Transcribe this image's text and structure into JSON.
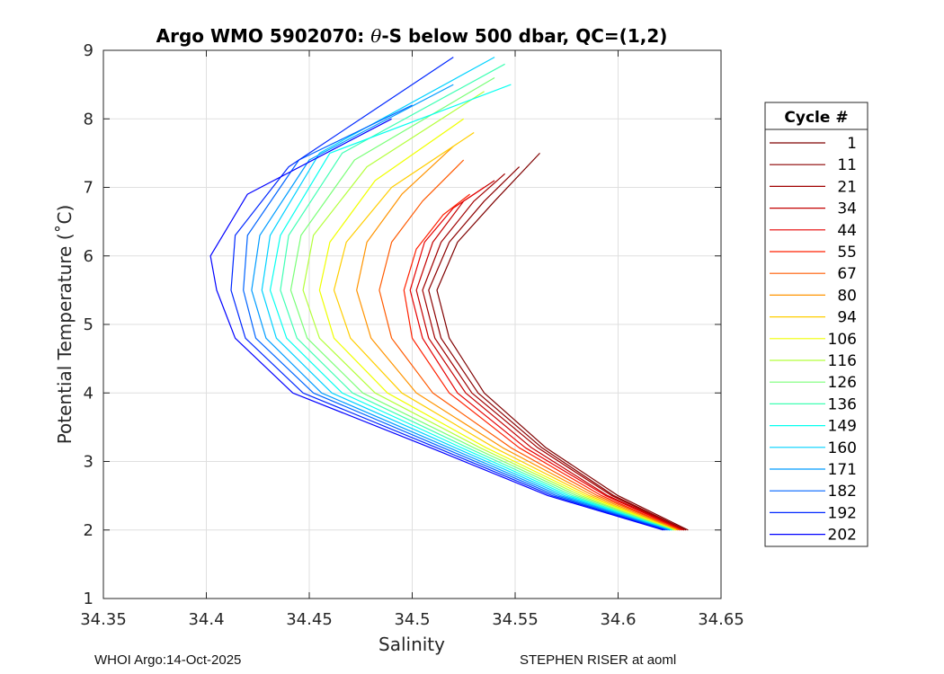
{
  "chart_data": {
    "type": "line",
    "title": "Argo WMO 5902070: θ-S below 500 dbar,  QC=(1,2)",
    "title_prefix": "Argo WMO 5902070: ",
    "title_theta": "θ",
    "title_suffix": "-S below 500 dbar,  QC=(1,2)",
    "xlabel": "Salinity",
    "ylabel": "Potential Temperature (˚C)",
    "xlim": [
      34.35,
      34.65
    ],
    "ylim": [
      1,
      9
    ],
    "x_ticks": [
      34.35,
      34.4,
      34.45,
      34.5,
      34.55,
      34.6,
      34.65
    ],
    "x_tick_labels": [
      "34.35",
      "34.4",
      "34.45",
      "34.5",
      "34.55",
      "34.6",
      "34.65"
    ],
    "y_ticks": [
      1,
      2,
      3,
      4,
      5,
      6,
      7,
      8,
      9
    ],
    "y_tick_labels": [
      "1",
      "2",
      "3",
      "4",
      "5",
      "6",
      "7",
      "8",
      "9"
    ],
    "grid": true,
    "legend_title": "Cycle #",
    "legend_position": "right, outside plot",
    "colormap": "jet",
    "series": [
      {
        "name": "1",
        "color": "#7f0000",
        "points": [
          [
            34.634,
            2.0
          ],
          [
            34.6,
            2.5
          ],
          [
            34.565,
            3.2
          ],
          [
            34.535,
            4.0
          ],
          [
            34.518,
            4.8
          ],
          [
            34.512,
            5.5
          ],
          [
            34.522,
            6.2
          ],
          [
            34.54,
            6.8
          ],
          [
            34.562,
            7.5
          ]
        ]
      },
      {
        "name": "11",
        "color": "#8c0000",
        "points": [
          [
            34.633,
            2.0
          ],
          [
            34.598,
            2.5
          ],
          [
            34.563,
            3.2
          ],
          [
            34.532,
            4.0
          ],
          [
            34.514,
            4.8
          ],
          [
            34.508,
            5.5
          ],
          [
            34.518,
            6.2
          ],
          [
            34.535,
            6.8
          ],
          [
            34.552,
            7.3
          ]
        ]
      },
      {
        "name": "21",
        "color": "#a00000",
        "points": [
          [
            34.632,
            2.0
          ],
          [
            34.597,
            2.5
          ],
          [
            34.561,
            3.2
          ],
          [
            34.529,
            4.0
          ],
          [
            34.511,
            4.8
          ],
          [
            34.505,
            5.5
          ],
          [
            34.514,
            6.2
          ],
          [
            34.53,
            6.8
          ],
          [
            34.545,
            7.2
          ]
        ]
      },
      {
        "name": "34",
        "color": "#c40000",
        "points": [
          [
            34.632,
            2.0
          ],
          [
            34.595,
            2.5
          ],
          [
            34.558,
            3.2
          ],
          [
            34.526,
            4.0
          ],
          [
            34.508,
            4.8
          ],
          [
            34.502,
            5.5
          ],
          [
            34.51,
            6.2
          ],
          [
            34.525,
            6.8
          ],
          [
            34.54,
            7.1
          ]
        ]
      },
      {
        "name": "44",
        "color": "#e60000",
        "points": [
          [
            34.631,
            2.0
          ],
          [
            34.594,
            2.5
          ],
          [
            34.555,
            3.2
          ],
          [
            34.522,
            4.0
          ],
          [
            34.505,
            4.8
          ],
          [
            34.499,
            5.5
          ],
          [
            34.506,
            6.2
          ],
          [
            34.52,
            6.7
          ],
          [
            34.535,
            7.0
          ]
        ]
      },
      {
        "name": "55",
        "color": "#ff2000",
        "points": [
          [
            34.63,
            2.0
          ],
          [
            34.592,
            2.5
          ],
          [
            34.552,
            3.2
          ],
          [
            34.518,
            4.0
          ],
          [
            34.5,
            4.8
          ],
          [
            34.496,
            5.5
          ],
          [
            34.502,
            6.1
          ],
          [
            34.515,
            6.6
          ],
          [
            34.528,
            6.9
          ]
        ]
      },
      {
        "name": "67",
        "color": "#ff5a00",
        "points": [
          [
            34.63,
            2.0
          ],
          [
            34.59,
            2.5
          ],
          [
            34.548,
            3.2
          ],
          [
            34.51,
            4.0
          ],
          [
            34.49,
            4.8
          ],
          [
            34.484,
            5.5
          ],
          [
            34.49,
            6.2
          ],
          [
            34.505,
            6.8
          ],
          [
            34.525,
            7.4
          ]
        ]
      },
      {
        "name": "80",
        "color": "#ff9400",
        "points": [
          [
            34.629,
            2.0
          ],
          [
            34.588,
            2.5
          ],
          [
            34.544,
            3.2
          ],
          [
            34.502,
            4.0
          ],
          [
            34.48,
            4.8
          ],
          [
            34.473,
            5.5
          ],
          [
            34.478,
            6.2
          ],
          [
            34.495,
            6.9
          ],
          [
            34.52,
            7.6
          ]
        ]
      },
      {
        "name": "94",
        "color": "#ffce00",
        "points": [
          [
            34.628,
            2.0
          ],
          [
            34.586,
            2.5
          ],
          [
            34.54,
            3.2
          ],
          [
            34.495,
            4.0
          ],
          [
            34.47,
            4.8
          ],
          [
            34.462,
            5.5
          ],
          [
            34.468,
            6.2
          ],
          [
            34.49,
            7.0
          ],
          [
            34.53,
            7.8
          ]
        ]
      },
      {
        "name": "106",
        "color": "#f0ff00",
        "points": [
          [
            34.628,
            2.0
          ],
          [
            34.584,
            2.5
          ],
          [
            34.536,
            3.2
          ],
          [
            34.488,
            4.0
          ],
          [
            34.462,
            4.8
          ],
          [
            34.455,
            5.5
          ],
          [
            34.46,
            6.2
          ],
          [
            34.482,
            7.1
          ],
          [
            34.525,
            8.0
          ]
        ]
      },
      {
        "name": "116",
        "color": "#b4ff3c",
        "points": [
          [
            34.627,
            2.0
          ],
          [
            34.582,
            2.5
          ],
          [
            34.533,
            3.2
          ],
          [
            34.482,
            4.0
          ],
          [
            34.455,
            4.8
          ],
          [
            34.447,
            5.5
          ],
          [
            34.452,
            6.3
          ],
          [
            34.478,
            7.3
          ],
          [
            34.535,
            8.4
          ]
        ]
      },
      {
        "name": "126",
        "color": "#7aff78",
        "points": [
          [
            34.627,
            2.0
          ],
          [
            34.58,
            2.5
          ],
          [
            34.53,
            3.2
          ],
          [
            34.476,
            4.0
          ],
          [
            34.449,
            4.8
          ],
          [
            34.441,
            5.5
          ],
          [
            34.446,
            6.3
          ],
          [
            34.472,
            7.4
          ],
          [
            34.54,
            8.6
          ]
        ]
      },
      {
        "name": "136",
        "color": "#40ffb4",
        "points": [
          [
            34.626,
            2.0
          ],
          [
            34.578,
            2.5
          ],
          [
            34.527,
            3.2
          ],
          [
            34.471,
            4.0
          ],
          [
            34.444,
            4.8
          ],
          [
            34.436,
            5.5
          ],
          [
            34.44,
            6.3
          ],
          [
            34.466,
            7.5
          ],
          [
            34.545,
            8.8
          ]
        ]
      },
      {
        "name": "149",
        "color": "#06fff0",
        "points": [
          [
            34.626,
            2.0
          ],
          [
            34.576,
            2.5
          ],
          [
            34.524,
            3.2
          ],
          [
            34.466,
            4.0
          ],
          [
            34.439,
            4.8
          ],
          [
            34.431,
            5.5
          ],
          [
            34.436,
            6.3
          ],
          [
            34.46,
            7.5
          ],
          [
            34.548,
            8.5
          ]
        ]
      },
      {
        "name": "160",
        "color": "#00d2ff",
        "points": [
          [
            34.625,
            2.0
          ],
          [
            34.574,
            2.5
          ],
          [
            34.521,
            3.2
          ],
          [
            34.461,
            4.0
          ],
          [
            34.434,
            4.8
          ],
          [
            34.427,
            5.5
          ],
          [
            34.431,
            6.3
          ],
          [
            34.455,
            7.5
          ],
          [
            34.54,
            8.9
          ]
        ]
      },
      {
        "name": "171",
        "color": "#009cff",
        "points": [
          [
            34.625,
            2.0
          ],
          [
            34.572,
            2.5
          ],
          [
            34.518,
            3.2
          ],
          [
            34.456,
            4.0
          ],
          [
            34.429,
            4.8
          ],
          [
            34.422,
            5.5
          ],
          [
            34.426,
            6.3
          ],
          [
            34.45,
            7.4
          ],
          [
            34.52,
            8.5
          ]
        ]
      },
      {
        "name": "182",
        "color": "#0064ff",
        "points": [
          [
            34.624,
            2.0
          ],
          [
            34.57,
            2.5
          ],
          [
            34.515,
            3.2
          ],
          [
            34.452,
            4.0
          ],
          [
            34.424,
            4.8
          ],
          [
            34.418,
            5.5
          ],
          [
            34.42,
            6.3
          ],
          [
            34.445,
            7.4
          ],
          [
            34.5,
            8.2
          ]
        ]
      },
      {
        "name": "192",
        "color": "#0028ff",
        "points": [
          [
            34.623,
            2.0
          ],
          [
            34.568,
            2.5
          ],
          [
            34.512,
            3.2
          ],
          [
            34.447,
            4.0
          ],
          [
            34.419,
            4.8
          ],
          [
            34.412,
            5.5
          ],
          [
            34.414,
            6.3
          ],
          [
            34.44,
            7.3
          ],
          [
            34.52,
            8.9
          ]
        ]
      },
      {
        "name": "202",
        "color": "#0000ff",
        "points": [
          [
            34.622,
            2.0
          ],
          [
            34.566,
            2.5
          ],
          [
            34.509,
            3.2
          ],
          [
            34.442,
            4.0
          ],
          [
            34.414,
            4.8
          ],
          [
            34.405,
            5.5
          ],
          [
            34.402,
            6.0
          ],
          [
            34.42,
            6.9
          ],
          [
            34.49,
            8.0
          ]
        ]
      }
    ]
  },
  "footer": {
    "left": "WHOI Argo:14-Oct-2025",
    "right": "STEPHEN RISER at aoml"
  }
}
